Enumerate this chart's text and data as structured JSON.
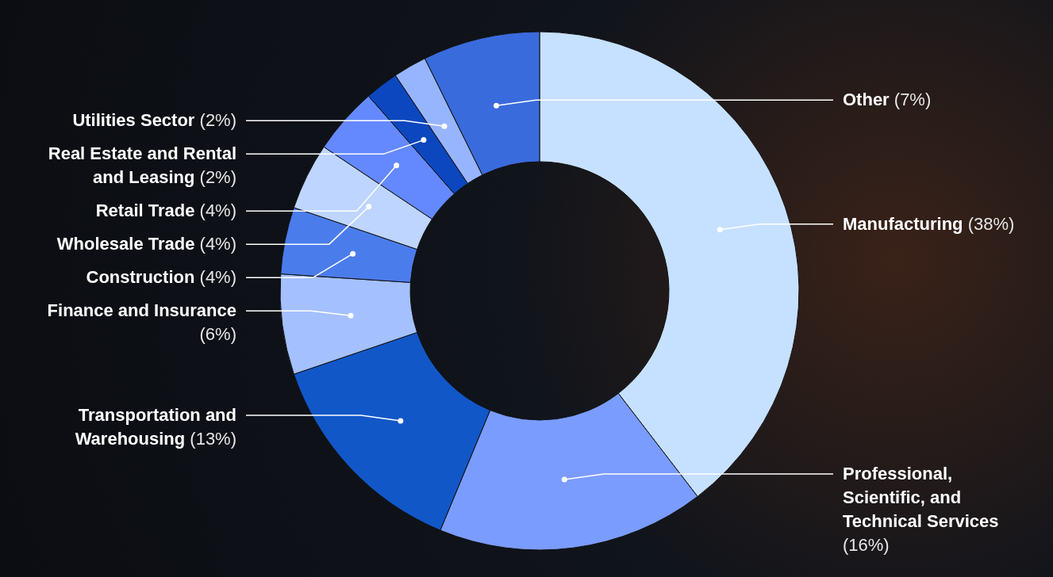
{
  "chart_data": {
    "type": "donut",
    "categories": [
      "Manufacturing",
      "Professional, Scientific, and Technical Services",
      "Transportation and Warehousing",
      "Finance and Insurance",
      "Construction",
      "Wholesale Trade",
      "Retail Trade",
      "Real Estate and Rental and Leasing",
      "Utilities Sector",
      "Other"
    ],
    "values": [
      38,
      16,
      13,
      6,
      4,
      4,
      4,
      2,
      2,
      7
    ],
    "value_labels": [
      "(38%)",
      "(16%)",
      "(13%)",
      "(6%)",
      "(4%)",
      "(4%)",
      "(4%)",
      "(2%)",
      "(2%)",
      "(7%)"
    ],
    "colors": [
      "#c6e0ff",
      "#7a9cff",
      "#1257c8",
      "#a4c0ff",
      "#4b7ceb",
      "#bdd5ff",
      "#6489ff",
      "#0c47bf",
      "#97b5ff",
      "#3a6bdc"
    ]
  }
}
